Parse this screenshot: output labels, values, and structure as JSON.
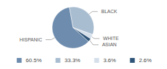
{
  "chart_data": {
    "type": "pie",
    "categories": [
      "HISPANIC",
      "BLACK",
      "WHITE",
      "ASIAN"
    ],
    "values": [
      60.5,
      33.3,
      3.6,
      2.6
    ],
    "value_labels": [
      "60.5%",
      "33.3%",
      "3.6%",
      "2.6%"
    ],
    "colors": [
      "#6d8cae",
      "#a9bdd1",
      "#d5dfea",
      "#2e5478"
    ],
    "legend": "bottom"
  }
}
